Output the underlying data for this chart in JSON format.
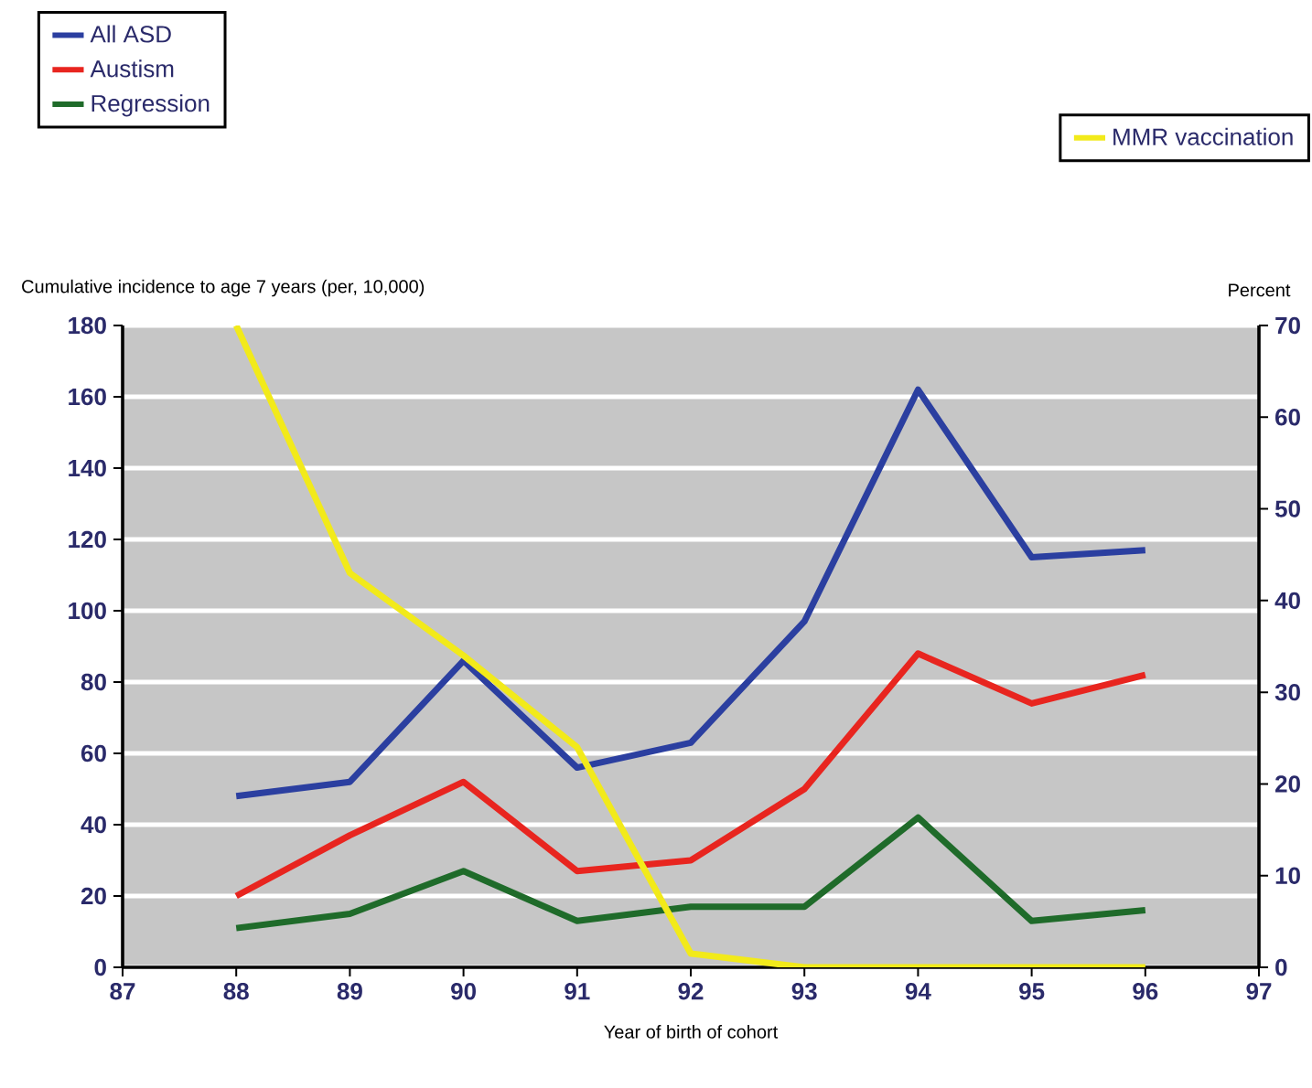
{
  "chart_data": {
    "type": "line",
    "xlabel": "Year of birth of cohort",
    "ylabel": "Cumulative incidence to age 7 years (per, 10,000)",
    "y2label": "Percent",
    "x": [
      88,
      89,
      90,
      91,
      92,
      93,
      94,
      95,
      96
    ],
    "series": [
      {
        "name": "All ASD",
        "color": "#2b3fa0",
        "values": [
          48,
          52,
          86,
          56,
          63,
          97,
          162,
          115,
          117
        ]
      },
      {
        "name": "Austism",
        "color": "#e8251f",
        "values": [
          20,
          37,
          52,
          27,
          30,
          50,
          88,
          74,
          82
        ]
      },
      {
        "name": "Regression",
        "color": "#1f6b2a",
        "values": [
          11,
          15,
          27,
          13,
          17,
          17,
          42,
          13,
          16
        ]
      },
      {
        "name": "MMR vaccination",
        "color": "#f2ea1a",
        "axis": "y2",
        "values": [
          70,
          43,
          34,
          24,
          1.5,
          0,
          0,
          0,
          0
        ]
      }
    ],
    "xlim": [
      87,
      97
    ],
    "xticks": [
      87,
      88,
      89,
      90,
      91,
      92,
      93,
      94,
      95,
      96,
      97
    ],
    "ylim": [
      0,
      180
    ],
    "yticks": [
      0,
      20,
      40,
      60,
      80,
      100,
      120,
      140,
      160,
      180
    ],
    "y2lim": [
      0,
      70
    ],
    "y2ticks": [
      0,
      10,
      20,
      30,
      40,
      50,
      60,
      70
    ],
    "grid": "y",
    "legend": "top",
    "marker": "none",
    "line_style": "solid"
  }
}
